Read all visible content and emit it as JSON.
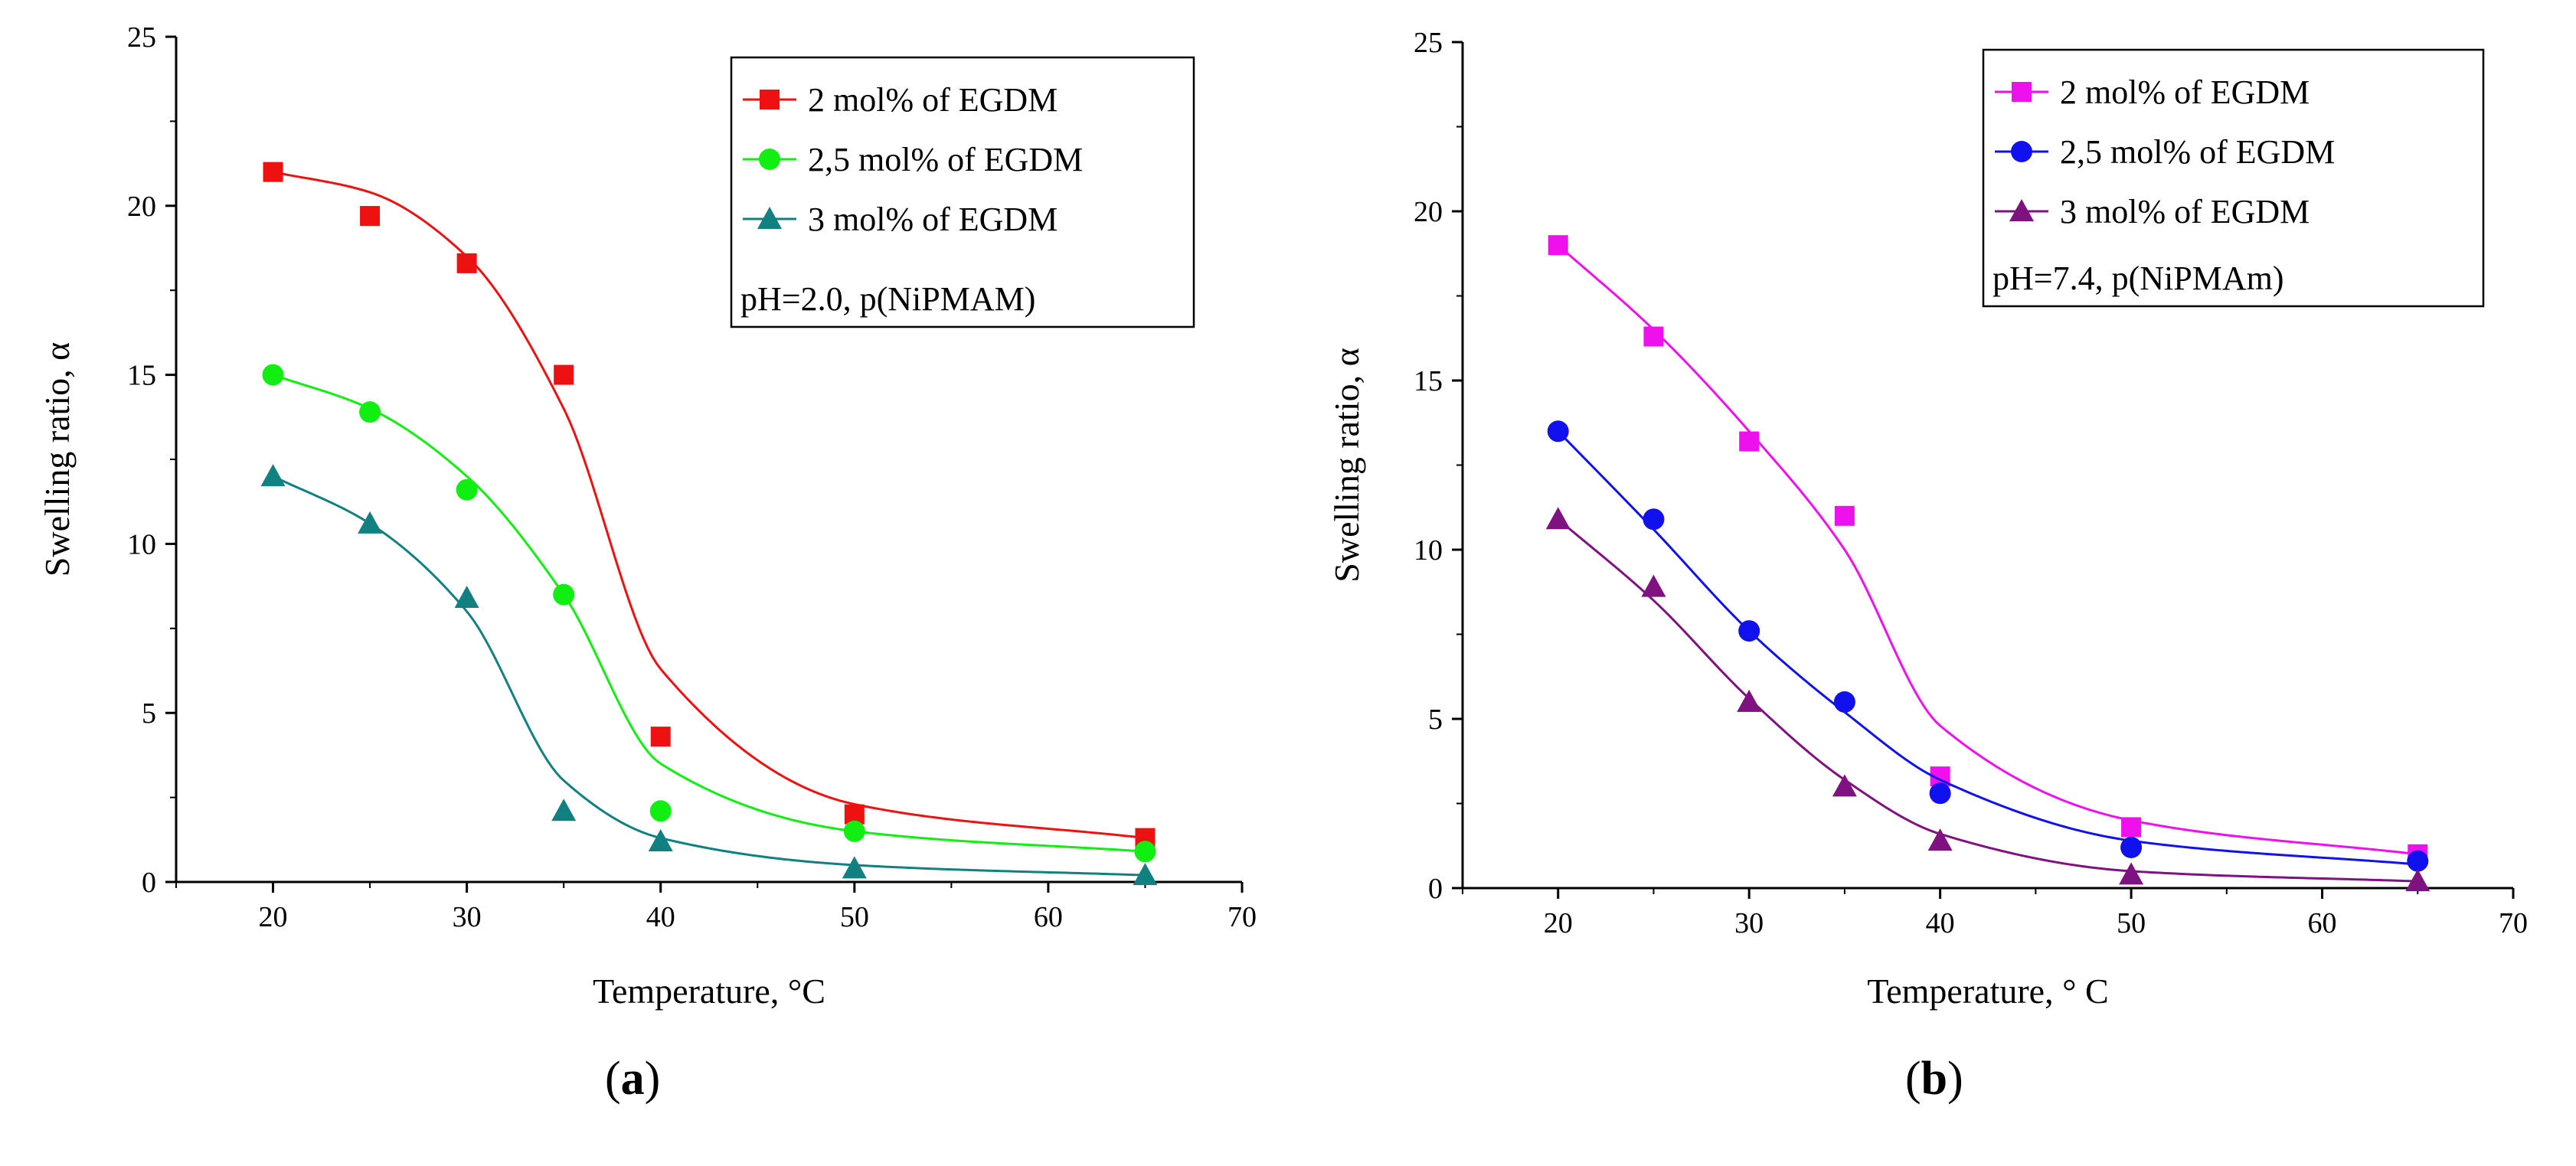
{
  "chart_data": [
    {
      "type": "line",
      "panel": "a",
      "caption": "a",
      "xlabel": "Temperature, °C",
      "ylabel": "Swelling ratio, α",
      "xlim": [
        15,
        70
      ],
      "ylim": [
        0,
        25
      ],
      "xticks": [
        20,
        30,
        40,
        50,
        60,
        70
      ],
      "yticks": [
        0,
        5,
        10,
        15,
        20,
        25
      ],
      "x": [
        20,
        25,
        30,
        35,
        40,
        50,
        65
      ],
      "legend_location": "top-right",
      "legend_note": "pH=2.0, p(NiPMAM)",
      "series": [
        {
          "name": "2 mol% of EGDM",
          "marker": "square",
          "color": "#ee1111",
          "values": [
            21.0,
            19.7,
            18.3,
            15.0,
            4.3,
            2.0,
            1.3
          ],
          "fit": [
            21.0,
            20.4,
            18.5,
            14.0,
            6.3,
            2.3,
            1.3
          ]
        },
        {
          "name": "2,5 mol% of EGDM",
          "marker": "circle",
          "color": "#11ee11",
          "values": [
            15.0,
            13.9,
            11.6,
            8.5,
            2.1,
            1.5,
            0.9
          ],
          "fit": [
            15.0,
            14.0,
            12.0,
            8.5,
            3.5,
            1.5,
            0.9
          ]
        },
        {
          "name": "3 mol% of EGDM",
          "marker": "triangle",
          "color": "#118080",
          "values": [
            12.0,
            10.6,
            8.4,
            2.1,
            1.2,
            0.4,
            0.2
          ],
          "fit": [
            12.0,
            10.6,
            8.0,
            3.0,
            1.3,
            0.5,
            0.2
          ]
        }
      ]
    },
    {
      "type": "line",
      "panel": "b",
      "caption": "b",
      "xlabel": "Temperature, ° C",
      "ylabel": "Swelling ratio, α",
      "xlim": [
        15,
        70
      ],
      "ylim": [
        0,
        25
      ],
      "xticks": [
        20,
        30,
        40,
        50,
        60,
        70
      ],
      "yticks": [
        0,
        5,
        10,
        15,
        20,
        25
      ],
      "x": [
        20,
        25,
        30,
        35,
        40,
        50,
        65
      ],
      "legend_location": "top-right",
      "legend_note": "pH=7.4, p(NiPMAm)",
      "series": [
        {
          "name": "2 mol% of EGDM",
          "marker": "square",
          "color": "#ee11ee",
          "values": [
            19.0,
            16.3,
            13.2,
            11.0,
            3.3,
            1.8,
            1.0
          ],
          "fit": [
            19.0,
            16.5,
            13.5,
            10.0,
            4.8,
            2.0,
            1.0
          ]
        },
        {
          "name": "2,5 mol% of EGDM",
          "marker": "circle",
          "color": "#1111ee",
          "values": [
            13.5,
            10.9,
            7.6,
            5.5,
            2.8,
            1.2,
            0.8
          ],
          "fit": [
            13.5,
            10.6,
            7.6,
            5.2,
            3.2,
            1.4,
            0.7
          ]
        },
        {
          "name": "3 mol% of EGDM",
          "marker": "triangle",
          "color": "#801180",
          "values": [
            10.9,
            8.9,
            5.5,
            3.0,
            1.4,
            0.4,
            0.2
          ],
          "fit": [
            10.9,
            8.5,
            5.6,
            3.2,
            1.6,
            0.5,
            0.2
          ]
        }
      ]
    }
  ]
}
